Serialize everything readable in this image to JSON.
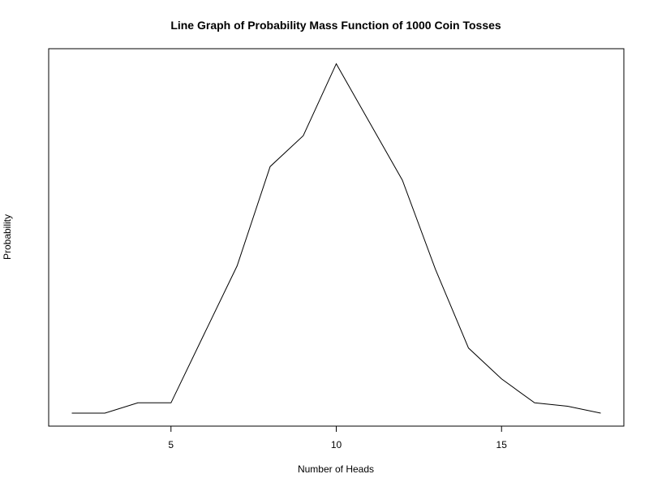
{
  "chart_data": {
    "type": "line",
    "title": "Line Graph of Probability Mass Function of 1000 Coin Tosses",
    "xlabel": "Number of Heads",
    "ylabel": "Probability",
    "x": [
      2,
      3,
      4,
      5,
      6,
      7,
      8,
      9,
      10,
      11,
      12,
      13,
      14,
      15,
      16,
      17,
      18
    ],
    "y": [
      0.001,
      0.001,
      0.004,
      0.004,
      0.024,
      0.044,
      0.073,
      0.082,
      0.103,
      0.086,
      0.069,
      0.043,
      0.02,
      0.011,
      0.004,
      0.003,
      0.001
    ],
    "xticks": [
      5,
      10,
      15
    ],
    "xlim": [
      1.3,
      18.7
    ],
    "ylim": [
      -0.0028,
      0.1074
    ],
    "yticks_shown": false,
    "grid": false,
    "line_color": "#000000"
  }
}
